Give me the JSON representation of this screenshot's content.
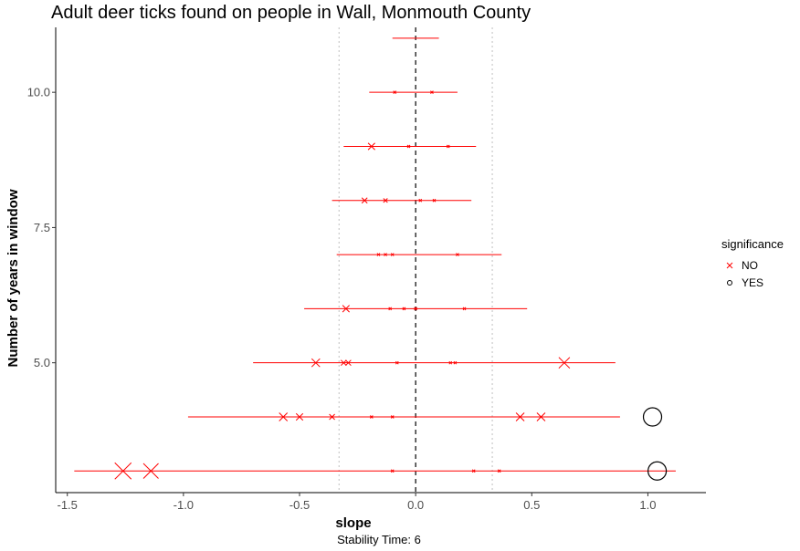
{
  "chart_data": {
    "type": "scatter",
    "title": "Adult deer ticks found on people in Wall, Monmouth County",
    "xlabel": "slope",
    "ylabel": "Number of years in window",
    "caption": "Stability Time: 6",
    "xlim": [
      -1.55,
      1.25
    ],
    "ylim": [
      2.6,
      11.2
    ],
    "x_ticks": [
      -1.5,
      -1.0,
      -0.5,
      0.0,
      0.5,
      1.0
    ],
    "x_tick_labels": [
      "-1.5",
      "-1.0",
      "-0.5",
      "0.0",
      "0.5",
      "1.0"
    ],
    "y_ticks": [
      5.0,
      7.5,
      10.0
    ],
    "y_tick_labels": [
      "5.0",
      "7.5",
      "10.0"
    ],
    "reference_lines": {
      "zero": 0.0,
      "dotted": [
        -0.33,
        0.33
      ]
    },
    "grid": false,
    "legend": {
      "title": "significance",
      "placement": "right",
      "entries": [
        {
          "label": "NO",
          "marker": "x",
          "color": "#ff0000"
        },
        {
          "label": "YES",
          "marker": "o",
          "color": "#000000"
        }
      ]
    },
    "colors": {
      "no": "#ff0000",
      "yes": "#000000",
      "axis": "#000000",
      "tick_label": "#4d4d4d",
      "dotted": "#bfbfbf"
    },
    "ranges": [
      {
        "years": 3,
        "min": -1.47,
        "max": 1.12
      },
      {
        "years": 4,
        "min": -0.98,
        "max": 0.88
      },
      {
        "years": 5,
        "min": -0.7,
        "max": 0.86
      },
      {
        "years": 6,
        "min": -0.48,
        "max": 0.48
      },
      {
        "years": 7,
        "min": -0.34,
        "max": 0.37
      },
      {
        "years": 8,
        "min": -0.36,
        "max": 0.24
      },
      {
        "years": 9,
        "min": -0.31,
        "max": 0.26
      },
      {
        "years": 10,
        "min": -0.2,
        "max": 0.18
      },
      {
        "years": 11,
        "min": -0.1,
        "max": 0.1
      }
    ],
    "points": [
      {
        "years": 3,
        "slope": -1.26,
        "size": 12,
        "significance": "NO"
      },
      {
        "years": 3,
        "slope": -1.14,
        "size": 11,
        "significance": "NO"
      },
      {
        "years": 3,
        "slope": -0.1,
        "size": 1,
        "significance": "NO"
      },
      {
        "years": 3,
        "slope": 0.25,
        "size": 2,
        "significance": "NO"
      },
      {
        "years": 3,
        "slope": 0.36,
        "size": 2,
        "significance": "NO"
      },
      {
        "years": 3,
        "slope": 1.04,
        "size": 10,
        "significance": "YES"
      },
      {
        "years": 4,
        "slope": -0.57,
        "size": 6,
        "significance": "NO"
      },
      {
        "years": 4,
        "slope": -0.5,
        "size": 5,
        "significance": "NO"
      },
      {
        "years": 4,
        "slope": -0.36,
        "size": 4,
        "significance": "NO"
      },
      {
        "years": 4,
        "slope": -0.19,
        "size": 2,
        "significance": "NO"
      },
      {
        "years": 4,
        "slope": -0.1,
        "size": 1,
        "significance": "NO"
      },
      {
        "years": 4,
        "slope": 0.45,
        "size": 6,
        "significance": "NO"
      },
      {
        "years": 4,
        "slope": 0.54,
        "size": 6,
        "significance": "NO"
      },
      {
        "years": 4,
        "slope": 1.02,
        "size": 10,
        "significance": "YES"
      },
      {
        "years": 5,
        "slope": -0.43,
        "size": 6,
        "significance": "NO"
      },
      {
        "years": 5,
        "slope": -0.31,
        "size": 4,
        "significance": "NO"
      },
      {
        "years": 5,
        "slope": -0.29,
        "size": 4,
        "significance": "NO"
      },
      {
        "years": 5,
        "slope": -0.08,
        "size": 1,
        "significance": "NO"
      },
      {
        "years": 5,
        "slope": 0.15,
        "size": 2,
        "significance": "NO"
      },
      {
        "years": 5,
        "slope": 0.17,
        "size": 2,
        "significance": "NO"
      },
      {
        "years": 5,
        "slope": 0.64,
        "size": 8,
        "significance": "NO"
      },
      {
        "years": 6,
        "slope": -0.3,
        "size": 5,
        "significance": "NO"
      },
      {
        "years": 6,
        "slope": -0.11,
        "size": 1,
        "significance": "NO"
      },
      {
        "years": 6,
        "slope": -0.05,
        "size": 1,
        "significance": "NO"
      },
      {
        "years": 6,
        "slope": 0.0,
        "size": 1,
        "significance": "NO"
      },
      {
        "years": 6,
        "slope": 0.21,
        "size": 2,
        "significance": "NO"
      },
      {
        "years": 7,
        "slope": -0.16,
        "size": 2,
        "significance": "NO"
      },
      {
        "years": 7,
        "slope": -0.13,
        "size": 2,
        "significance": "NO"
      },
      {
        "years": 7,
        "slope": -0.1,
        "size": 1,
        "significance": "NO"
      },
      {
        "years": 7,
        "slope": 0.18,
        "size": 2,
        "significance": "NO"
      },
      {
        "years": 8,
        "slope": -0.22,
        "size": 4,
        "significance": "NO"
      },
      {
        "years": 8,
        "slope": -0.13,
        "size": 3,
        "significance": "NO"
      },
      {
        "years": 8,
        "slope": 0.02,
        "size": 1,
        "significance": "NO"
      },
      {
        "years": 8,
        "slope": 0.08,
        "size": 1,
        "significance": "NO"
      },
      {
        "years": 9,
        "slope": -0.19,
        "size": 5,
        "significance": "NO"
      },
      {
        "years": 9,
        "slope": -0.03,
        "size": 1,
        "significance": "NO"
      },
      {
        "years": 9,
        "slope": 0.14,
        "size": 2,
        "significance": "NO"
      },
      {
        "years": 10,
        "slope": -0.09,
        "size": 2,
        "significance": "NO"
      },
      {
        "years": 10,
        "slope": 0.07,
        "size": 1,
        "significance": "NO"
      }
    ]
  }
}
